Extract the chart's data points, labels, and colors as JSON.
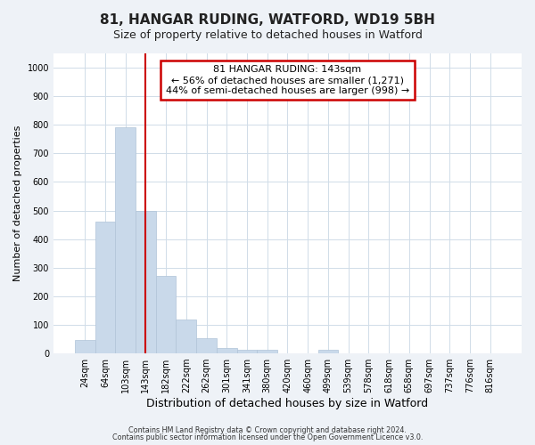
{
  "title": "81, HANGAR RUDING, WATFORD, WD19 5BH",
  "subtitle": "Size of property relative to detached houses in Watford",
  "xlabel": "Distribution of detached houses by size in Watford",
  "ylabel": "Number of detached properties",
  "bar_labels": [
    "24sqm",
    "64sqm",
    "103sqm",
    "143sqm",
    "182sqm",
    "222sqm",
    "262sqm",
    "301sqm",
    "341sqm",
    "380sqm",
    "420sqm",
    "460sqm",
    "499sqm",
    "539sqm",
    "578sqm",
    "618sqm",
    "658sqm",
    "697sqm",
    "737sqm",
    "776sqm",
    "816sqm"
  ],
  "bar_values": [
    48,
    460,
    793,
    500,
    270,
    120,
    53,
    20,
    14,
    14,
    0,
    0,
    12,
    0,
    0,
    0,
    0,
    0,
    0,
    0,
    0
  ],
  "bar_color": "#c9d9ea",
  "bar_edgecolor": "#b0c4d8",
  "red_line_index": 3,
  "ylim": [
    0,
    1050
  ],
  "yticks": [
    0,
    100,
    200,
    300,
    400,
    500,
    600,
    700,
    800,
    900,
    1000
  ],
  "annotation_line1": "81 HANGAR RUDING: 143sqm",
  "annotation_line2": "← 56% of detached houses are smaller (1,271)",
  "annotation_line3": "44% of semi-detached houses are larger (998) →",
  "annotation_box_facecolor": "#ffffff",
  "annotation_box_edgecolor": "#cc0000",
  "red_line_color": "#cc0000",
  "grid_color": "#d0dce8",
  "plot_bg_color": "#ffffff",
  "fig_bg_color": "#eef2f7",
  "footnote1": "Contains HM Land Registry data © Crown copyright and database right 2024.",
  "footnote2": "Contains public sector information licensed under the Open Government Licence v3.0.",
  "title_fontsize": 11,
  "subtitle_fontsize": 9,
  "ylabel_fontsize": 8,
  "xlabel_fontsize": 9
}
